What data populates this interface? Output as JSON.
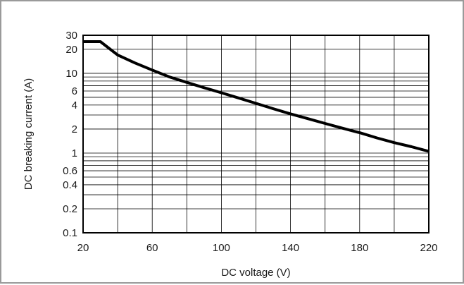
{
  "chart_data": {
    "type": "line",
    "title": "",
    "xlabel": "DC voltage (V)",
    "ylabel": "DC breaking current (A)",
    "xlim": [
      20,
      220
    ],
    "ylim": [
      0.1,
      30
    ],
    "yscale": "log",
    "grid": true,
    "legend": "none",
    "line_color": "#000000",
    "x_ticks": [
      {
        "value": 20,
        "label": "20"
      },
      {
        "value": 60,
        "label": "60"
      },
      {
        "value": 100,
        "label": "100"
      },
      {
        "value": 140,
        "label": "140"
      },
      {
        "value": 180,
        "label": "180"
      },
      {
        "value": 220,
        "label": "220"
      }
    ],
    "x_grid": [
      20,
      40,
      60,
      80,
      100,
      120,
      140,
      160,
      180,
      200,
      220
    ],
    "y_ticks": [
      {
        "value": 0.1,
        "label": "0.1"
      },
      {
        "value": 0.2,
        "label": "0.2"
      },
      {
        "value": 0.4,
        "label": "0.4"
      },
      {
        "value": 0.6,
        "label": "0.6"
      },
      {
        "value": 1,
        "label": "1"
      },
      {
        "value": 2,
        "label": "2"
      },
      {
        "value": 4,
        "label": "4"
      },
      {
        "value": 6,
        "label": "6"
      },
      {
        "value": 10,
        "label": "10"
      },
      {
        "value": 20,
        "label": "20"
      },
      {
        "value": 30,
        "label": "30"
      }
    ],
    "y_grid": [
      0.1,
      0.2,
      0.3,
      0.4,
      0.5,
      0.6,
      0.7,
      0.8,
      0.9,
      1,
      2,
      3,
      4,
      5,
      6,
      7,
      8,
      9,
      10,
      20,
      30
    ],
    "series": [
      {
        "x": [
          20,
          30,
          40,
          50,
          60,
          70,
          80,
          90,
          100,
          110,
          120,
          130,
          140,
          150,
          160,
          170,
          180,
          190,
          200,
          210,
          220
        ],
        "values": [
          25,
          25,
          17,
          13.5,
          11,
          9,
          7.7,
          6.6,
          5.7,
          4.9,
          4.2,
          3.6,
          3.1,
          2.7,
          2.35,
          2.05,
          1.8,
          1.55,
          1.35,
          1.2,
          1.05
        ]
      }
    ]
  }
}
